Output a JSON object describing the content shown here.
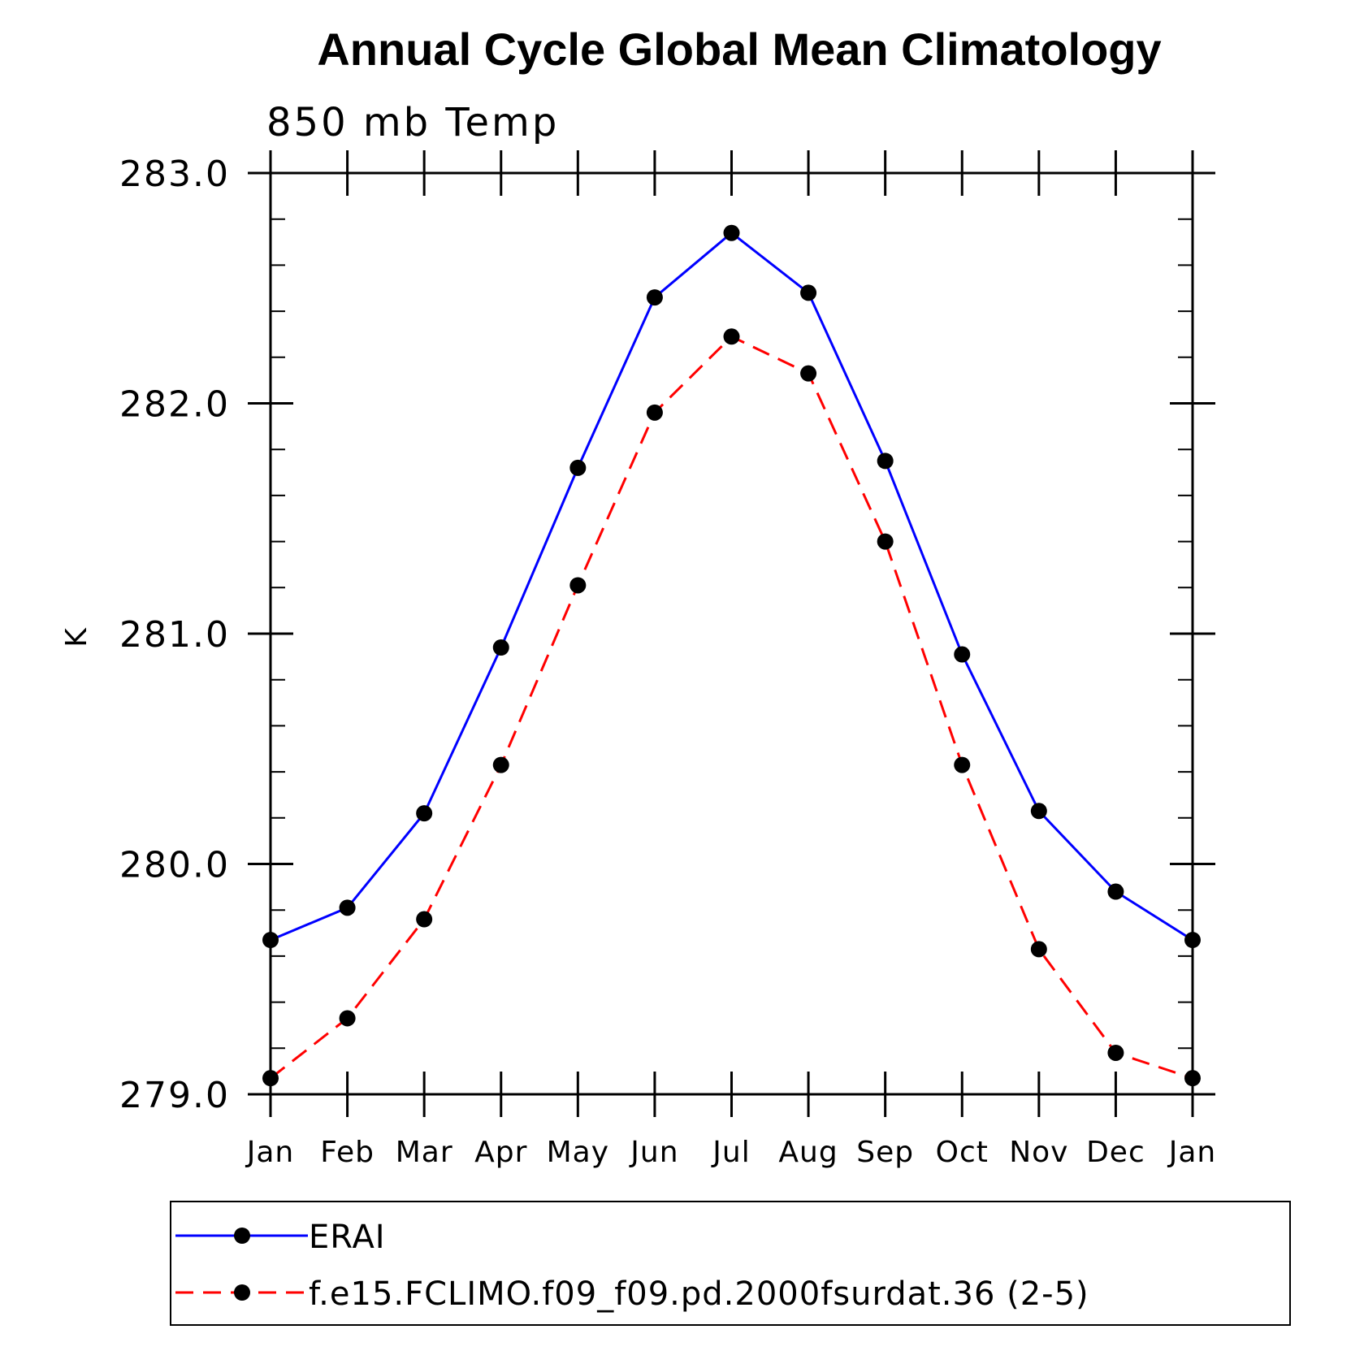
{
  "chart_data": {
    "type": "line",
    "title": "Annual Cycle Global Mean Climatology",
    "subtitle": "850 mb Temp",
    "xlabel": "",
    "ylabel": "K",
    "categories": [
      "Jan",
      "Feb",
      "Mar",
      "Apr",
      "May",
      "Jun",
      "Jul",
      "Aug",
      "Sep",
      "Oct",
      "Nov",
      "Dec",
      "Jan"
    ],
    "ylim": [
      279.0,
      283.0
    ],
    "yticks": [
      279.0,
      280.0,
      281.0,
      282.0,
      283.0
    ],
    "ytick_labels": [
      "279.0",
      "280.0",
      "281.0",
      "282.0",
      "283.0"
    ],
    "y_minor_step": 0.2,
    "grid": false,
    "legend_position": "bottom",
    "series": [
      {
        "name": "ERAI",
        "color": "#0000ff",
        "dash": "solid",
        "marker": "filled-circle",
        "values": [
          279.67,
          279.81,
          280.22,
          280.94,
          281.72,
          282.46,
          282.74,
          282.48,
          281.75,
          280.91,
          280.23,
          279.88,
          279.67
        ]
      },
      {
        "name": "f.e15.FCLIMO.f09_f09.pd.2000fsurdat.36 (2-5)",
        "color": "#ff0000",
        "dash": "dashed",
        "marker": "filled-circle",
        "values": [
          279.07,
          279.33,
          279.76,
          280.43,
          281.21,
          281.96,
          282.29,
          282.13,
          281.4,
          280.43,
          279.63,
          279.18,
          279.07
        ]
      }
    ]
  }
}
